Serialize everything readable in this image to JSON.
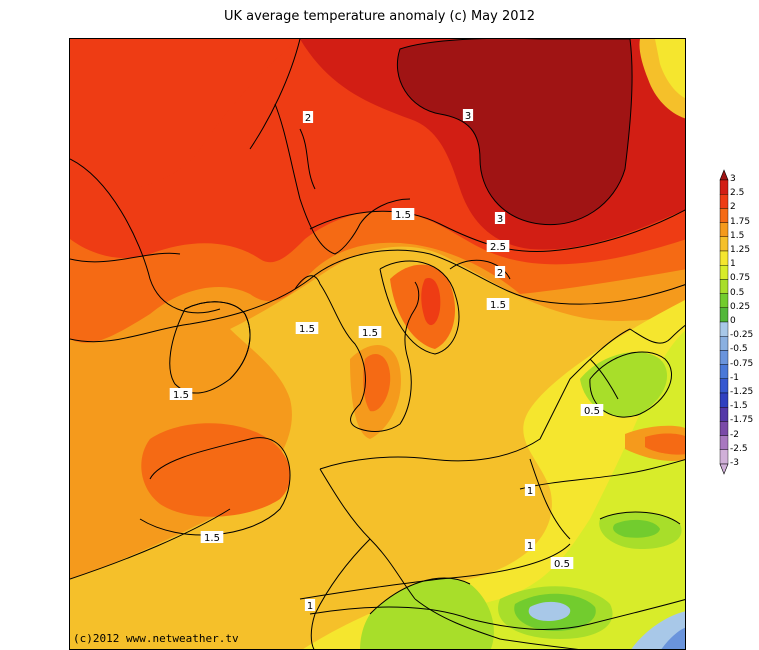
{
  "title": "UK average temperature anomaly (c) May 2012",
  "copyright": "(c)2012 www.netweather.tv",
  "legend": {
    "levels": [
      "3",
      "2.5",
      "2",
      "1.75",
      "1.5",
      "1.25",
      "1",
      "0.75",
      "0.5",
      "0.25",
      "0",
      "-0.25",
      "-0.5",
      "-0.75",
      "-1",
      "-1.25",
      "-1.5",
      "-1.75",
      "-2",
      "-2.5",
      "-3"
    ],
    "colors": [
      "#a01414",
      "#d21e14",
      "#ee3c14",
      "#f56a14",
      "#f59a1c",
      "#f5c02a",
      "#f5e62e",
      "#d8ec2a",
      "#a8de2a",
      "#72cc2e",
      "#52b83a",
      "#a8c8e8",
      "#8ab0e0",
      "#6a94dc",
      "#4a78d8",
      "#3658d0",
      "#3040c0",
      "#5438a8",
      "#7a4aa8",
      "#a878c0",
      "#d0b0d8"
    ]
  },
  "contour_labels": [
    {
      "text": "2"
    },
    {
      "text": "3"
    },
    {
      "text": "1.5"
    },
    {
      "text": "3"
    },
    {
      "text": "2.5"
    },
    {
      "text": "2"
    },
    {
      "text": "1.5"
    },
    {
      "text": "1.5"
    },
    {
      "text": "1.5"
    },
    {
      "text": "1.5"
    },
    {
      "text": "0.5"
    },
    {
      "text": "1"
    },
    {
      "text": "1"
    },
    {
      "text": "1.5"
    },
    {
      "text": "0.5"
    },
    {
      "text": "1"
    }
  ]
}
